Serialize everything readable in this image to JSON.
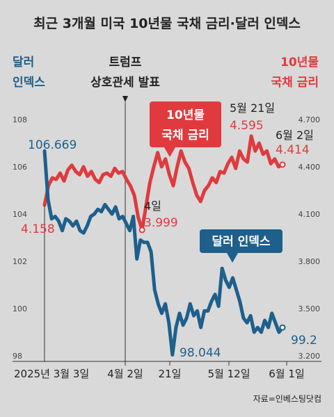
{
  "chart_data": {
    "type": "line",
    "title": "최근 3개월 미국 10년물 국채 금리·달러 인덱스",
    "x_ticks": [
      "2025년 3월 3일",
      "4월 2일",
      "21일",
      "5월 12일",
      "6월 1일"
    ],
    "y_left": {
      "label_line1": "달러",
      "label_line2": "인덱스",
      "ticks": [
        "108",
        "106",
        "104",
        "102",
        "100",
        "98"
      ],
      "range": [
        98,
        108
      ]
    },
    "y_right": {
      "label_line1": "10년물",
      "label_line2": "국채 금리",
      "ticks": [
        "4.700",
        "4.400",
        "4.100",
        "3.800",
        "3.500",
        "3.200"
      ],
      "range": [
        3.2,
        4.7
      ]
    },
    "event": {
      "line1": "트럼프",
      "line2": "상호관세 발표"
    },
    "series": [
      {
        "name": "10년물 국채 금리",
        "legend_line1": "10년물",
        "legend_line2": "국채 금리",
        "color": "#e03a3e",
        "axis": "right",
        "values": [
          4.158,
          4.28,
          4.33,
          4.32,
          4.36,
          4.31,
          4.38,
          4.41,
          4.37,
          4.35,
          4.4,
          4.34,
          4.37,
          4.32,
          4.3,
          4.35,
          4.36,
          4.34,
          4.39,
          4.36,
          4.37,
          4.32,
          4.28,
          4.22,
          4.08,
          3.999,
          4.15,
          4.3,
          4.4,
          4.49,
          4.4,
          4.45,
          4.35,
          4.28,
          4.4,
          4.5,
          4.43,
          4.39,
          4.3,
          4.22,
          4.18,
          4.25,
          4.28,
          4.33,
          4.3,
          4.37,
          4.36,
          4.42,
          4.46,
          4.39,
          4.5,
          4.45,
          4.43,
          4.595,
          4.5,
          4.55,
          4.48,
          4.5,
          4.42,
          4.45,
          4.4,
          4.414
        ]
      },
      {
        "name": "달러 인덱스",
        "legend_line1": "달러 인덱스",
        "color": "#1e5f8c",
        "axis": "left",
        "values": [
          106.669,
          104.6,
          103.8,
          103.9,
          103.7,
          103.3,
          103.8,
          103.7,
          103.5,
          103.7,
          103.3,
          103.2,
          103.5,
          103.9,
          104.0,
          104.2,
          104.1,
          104.4,
          104.2,
          104.0,
          104.3,
          103.8,
          103.9,
          103.6,
          103.3,
          103.9,
          102.1,
          102.9,
          102.8,
          102.8,
          102.4,
          100.8,
          100.2,
          99.8,
          100.2,
          99.4,
          98.044,
          99.2,
          99.8,
          99.3,
          99.6,
          100.2,
          99.7,
          99.9,
          99.2,
          99.9,
          99.9,
          100.3,
          100.6,
          100.1,
          101.7,
          101.2,
          100.9,
          101.3,
          100.8,
          100.3,
          99.6,
          99.4,
          99.7,
          99.0,
          99.2,
          99.0,
          99.5,
          99.2,
          99.8,
          99.4,
          99.0,
          99.2
        ]
      }
    ],
    "annotations": {
      "dxy_start": "106.669",
      "dxy_low": "98.044",
      "dxy_end": "99.2",
      "rate_start": "4.158",
      "rate_low_date": "4일",
      "rate_low": "3.999",
      "rate_peak_date": "5월 21일",
      "rate_peak": "4.595",
      "rate_end_date": "6월 2일",
      "rate_end": "4.414"
    },
    "grid": false
  },
  "source": "자료=인베스팅닷컴",
  "colors": {
    "background": "#d9d9d9",
    "rate": "#e03a3e",
    "dollar": "#1e5f8c"
  }
}
